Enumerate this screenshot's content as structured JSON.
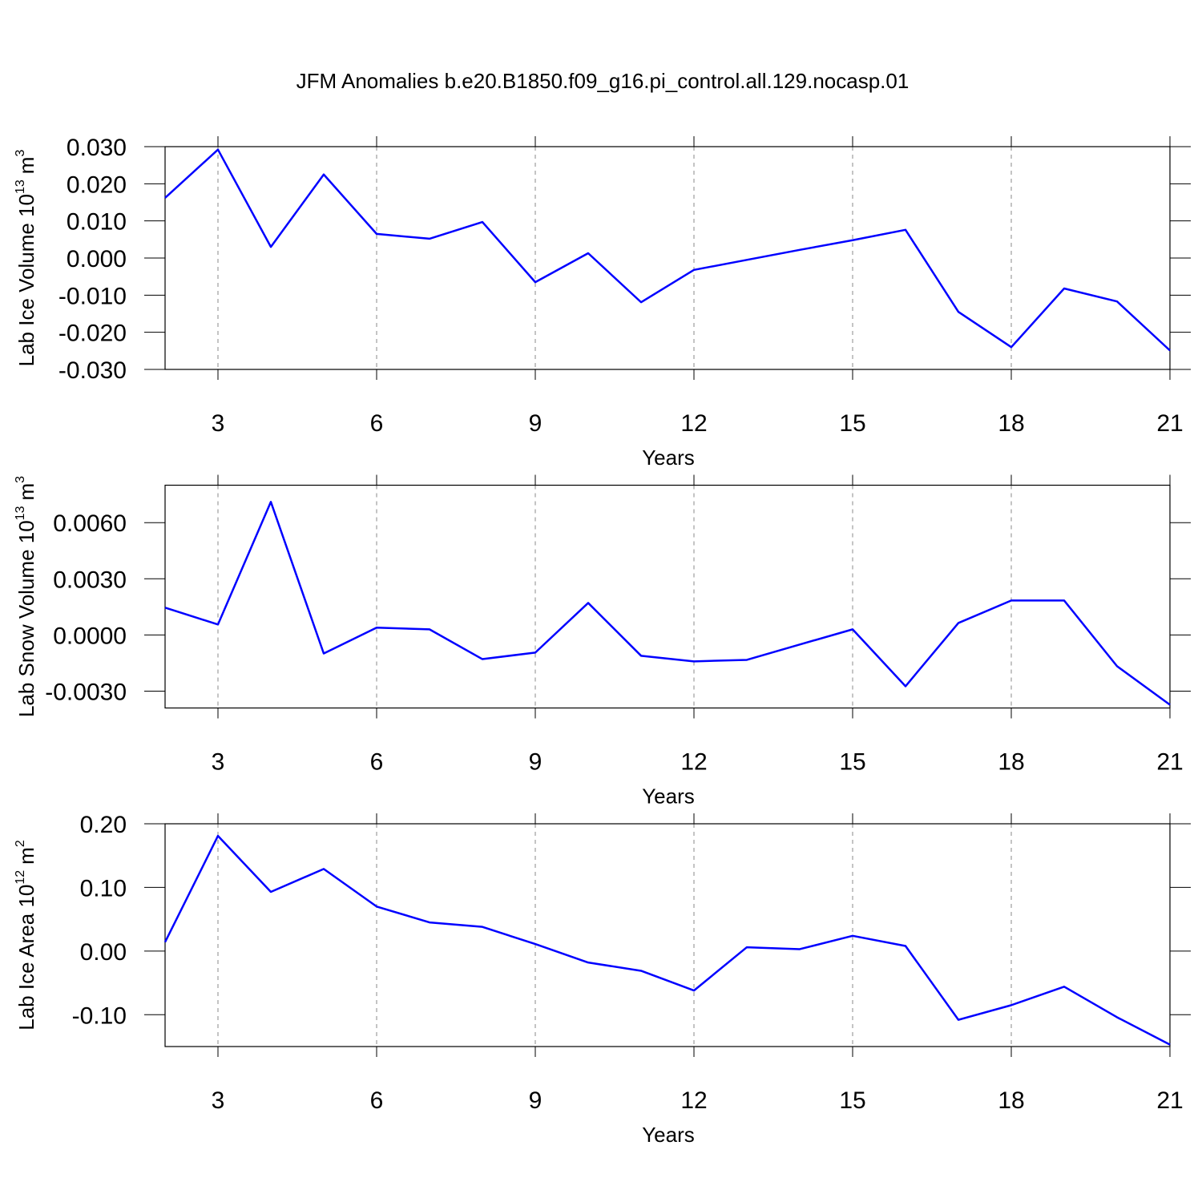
{
  "title": "JFM Anomalies b.e20.B1850.f09_g16.pi_control.all.129.nocasp.01",
  "chart_data": [
    {
      "type": "line",
      "xlabel": "Years",
      "ylabel": [
        "Lab Ice Volume 10",
        "13",
        "m",
        "3"
      ],
      "x": [
        2,
        3,
        4,
        5,
        6,
        7,
        8,
        9,
        10,
        11,
        12,
        13,
        14,
        15,
        16,
        17,
        18,
        19,
        20,
        21
      ],
      "values": [
        0.0162,
        0.0292,
        0.003,
        0.0225,
        0.0065,
        0.0052,
        0.0097,
        -0.0065,
        0.0013,
        -0.0119,
        -0.0032,
        -0.0005,
        0.0022,
        0.0048,
        0.0076,
        -0.0145,
        -0.024,
        -0.0082,
        -0.0117,
        -0.0249
      ],
      "color": "#0000ff",
      "xlim": [
        2,
        21
      ],
      "xticks": [
        3,
        6,
        9,
        12,
        15,
        18,
        21
      ],
      "ylim": [
        -0.03,
        0.03
      ],
      "yticks": [
        {
          "value": -0.03,
          "label": "-0.030"
        },
        {
          "value": -0.02,
          "label": "-0.020"
        },
        {
          "value": -0.01,
          "label": "-0.010"
        },
        {
          "value": 0,
          "label": "0.000"
        },
        {
          "value": 0.01,
          "label": "0.010"
        },
        {
          "value": 0.02,
          "label": "0.020"
        },
        {
          "value": 0.03,
          "label": "0.030"
        }
      ],
      "xgrid": true
    },
    {
      "type": "line",
      "xlabel": "Years",
      "ylabel": [
        "Lab Snow Volume 10",
        "13",
        "m",
        "3"
      ],
      "x": [
        2,
        3,
        4,
        5,
        6,
        7,
        8,
        9,
        10,
        11,
        12,
        13,
        14,
        15,
        16,
        17,
        18,
        19,
        20,
        21
      ],
      "values": [
        0.00146,
        0.00056,
        0.00711,
        -0.00099,
        0.00039,
        0.0003,
        -0.00129,
        -0.00094,
        0.00171,
        -0.00111,
        -0.00141,
        -0.00133,
        -0.00051,
        0.0003,
        -0.00274,
        0.00064,
        0.00184,
        0.00184,
        -0.00167,
        -0.00373
      ],
      "color": "#0000ff",
      "xlim": [
        2,
        21
      ],
      "xticks": [
        3,
        6,
        9,
        12,
        15,
        18,
        21
      ],
      "ylim": [
        -0.0039,
        0.008
      ],
      "yticks": [
        {
          "value": -0.003,
          "label": "-0.0030"
        },
        {
          "value": 0,
          "label": "0.0000"
        },
        {
          "value": 0.003,
          "label": "0.0030"
        },
        {
          "value": 0.006,
          "label": "0.0060"
        }
      ],
      "xgrid": true
    },
    {
      "type": "line",
      "xlabel": "Years",
      "ylabel": [
        "Lab Ice Area 10",
        "12",
        "m",
        "2"
      ],
      "x": [
        2,
        3,
        4,
        5,
        6,
        7,
        8,
        9,
        10,
        11,
        12,
        13,
        14,
        15,
        16,
        17,
        18,
        19,
        20,
        21
      ],
      "values": [
        0.014,
        0.181,
        0.093,
        0.129,
        0.07,
        0.045,
        0.038,
        0.011,
        -0.018,
        -0.031,
        -0.062,
        0.006,
        0.003,
        0.024,
        0.008,
        -0.108,
        -0.085,
        -0.056,
        -0.104,
        -0.147
      ],
      "color": "#0000ff",
      "xlim": [
        2,
        21
      ],
      "xticks": [
        3,
        6,
        9,
        12,
        15,
        18,
        21
      ],
      "ylim": [
        -0.15,
        0.2
      ],
      "yticks": [
        {
          "value": -0.1,
          "label": "-0.10"
        },
        {
          "value": 0,
          "label": "0.00"
        },
        {
          "value": 0.1,
          "label": "0.10"
        },
        {
          "value": 0.2,
          "label": "0.20"
        }
      ],
      "xgrid": true
    }
  ]
}
